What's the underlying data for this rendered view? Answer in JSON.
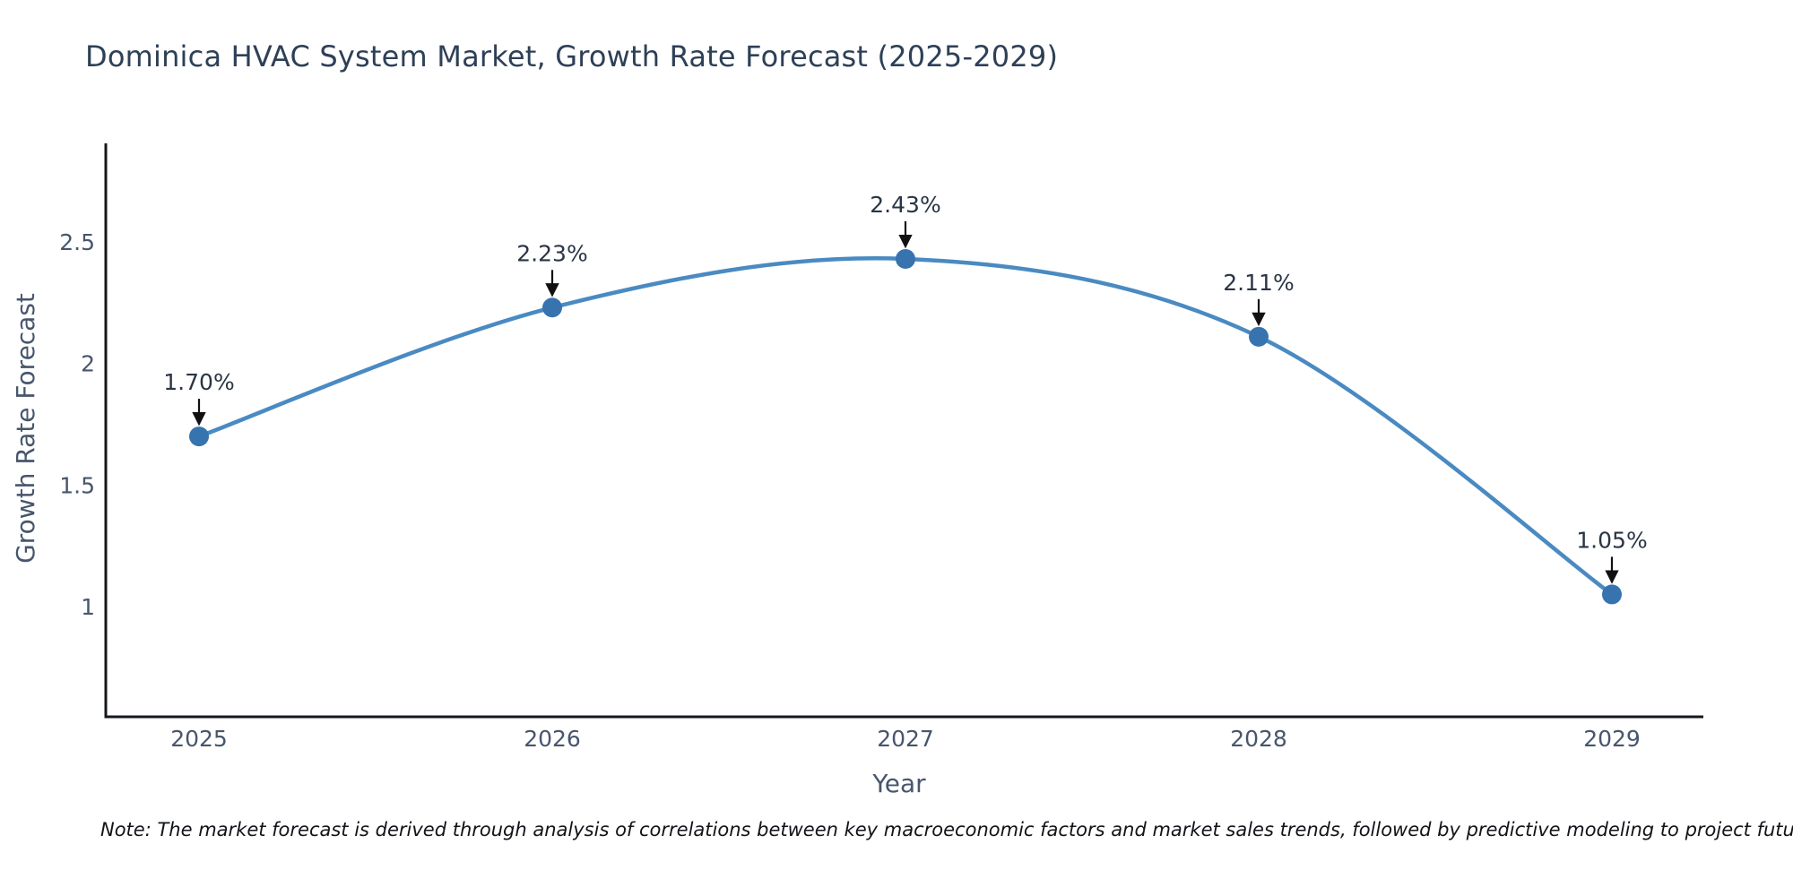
{
  "title": "Dominica HVAC System Market, Growth Rate Forecast (2025-2029)",
  "note": "Note: The market forecast is derived through analysis of correlations between key macroeconomic factors and market sales trends, followed by predictive modeling to project future sales",
  "chart_data": {
    "type": "line",
    "title": "Dominica HVAC System Market, Growth Rate Forecast (2025-2029)",
    "xlabel": "Year",
    "ylabel": "Growth Rate Forecast",
    "x": [
      2025,
      2026,
      2027,
      2028,
      2029
    ],
    "series": [
      {
        "name": "Growth Rate Forecast",
        "values": [
          1.7,
          2.23,
          2.43,
          2.11,
          1.05
        ]
      }
    ],
    "point_labels": [
      "1.70%",
      "2.23%",
      "2.43%",
      "2.11%",
      "1.05%"
    ],
    "yticks": [
      1,
      1.5,
      2,
      2.5
    ],
    "ytick_labels": [
      "1",
      "1.5",
      "2",
      "2.5"
    ],
    "xtick_labels": [
      "2025",
      "2026",
      "2027",
      "2028",
      "2029"
    ],
    "xlim": [
      2024.74,
      2029.26
    ],
    "ylim": [
      0.55,
      2.9
    ],
    "grid": false,
    "legend": false,
    "line_shape": "spline",
    "colors": {
      "line": "#4a8ac2",
      "marker": "#3773af",
      "axis": "#15181c",
      "tick_text": "#47566d",
      "annotation_text": "#2a3545",
      "arrow": "#111111",
      "title_text": "#2e4057"
    }
  }
}
